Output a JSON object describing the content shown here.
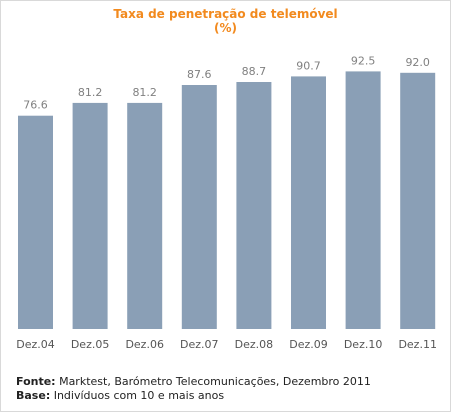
{
  "chart_data": {
    "type": "bar",
    "title": "Taxa de penetração de telemóvel",
    "subtitle": "(%)",
    "categories": [
      "Dez.04",
      "Dez.05",
      "Dez.06",
      "Dez.07",
      "Dez.08",
      "Dez.09",
      "Dez.10",
      "Dez.11"
    ],
    "values": [
      76.6,
      81.2,
      81.2,
      87.6,
      88.7,
      90.7,
      92.5,
      92.0
    ],
    "value_labels": [
      "76.6",
      "81.2",
      "81.2",
      "87.6",
      "88.7",
      "90.7",
      "92.5",
      "92.0"
    ],
    "xlabel": "",
    "ylabel": "",
    "grid": false,
    "legend": "none"
  },
  "colors": {
    "title": "#f28a1e",
    "bar": "#8a9fb6",
    "value_label": "#808080",
    "tick_label": "#555555"
  },
  "footer": {
    "source_label": "Fonte:",
    "source_text": " Marktest, Barómetro Telecomunicações, Dezembro 2011",
    "base_label": "Base:",
    "base_text": " Indivíduos com 10 e mais anos"
  }
}
